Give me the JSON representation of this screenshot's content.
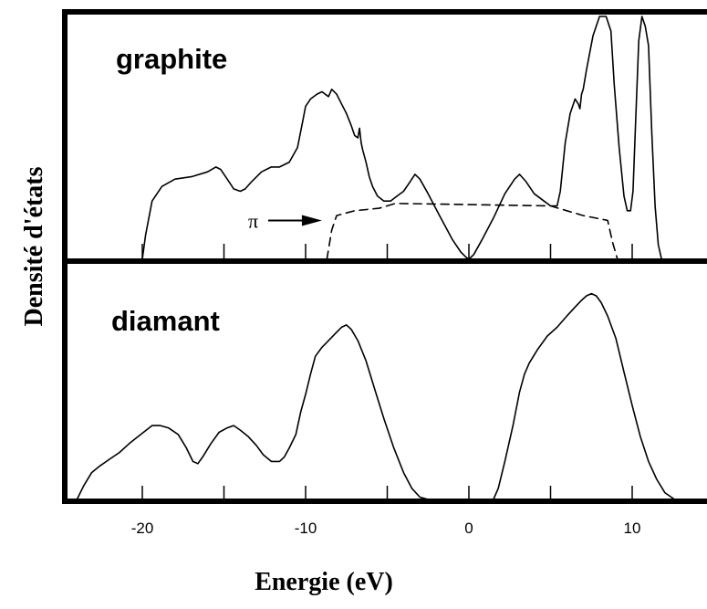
{
  "chart_data": {
    "type": "line",
    "xlabel": "Energie (eV)",
    "ylabel": "Densité d'états",
    "xlim": [
      -25,
      14
    ],
    "x_ticks": [
      -20,
      -10,
      0,
      10
    ],
    "x_tick_labels": [
      "-20",
      "-10",
      "0",
      "10"
    ],
    "minor_ticks": [
      -20,
      -15,
      -10,
      -5,
      0,
      5,
      10
    ],
    "grid": false,
    "panels": [
      {
        "label": "graphite",
        "ylim": [
          0,
          1
        ],
        "series": [
          {
            "style": "solid",
            "x": [
              -20,
              -19.8,
              -19.4,
              -18.8,
              -18,
              -17,
              -16,
              -15.5,
              -15.2,
              -14.8,
              -14.4,
              -14,
              -13.7,
              -13.3,
              -12.7,
              -12.1,
              -11.6,
              -11,
              -10.5,
              -10.2,
              -10,
              -9.7,
              -9.3,
              -9,
              -8.6,
              -8.4,
              -8.1,
              -7.8,
              -7.5,
              -7.2,
              -7,
              -6.8,
              -6.7,
              -6.6,
              -6.5,
              -6.3,
              -6.1,
              -5.9,
              -5.6,
              -5.2,
              -4.8,
              -4.4,
              -4,
              -3.6,
              -3.3,
              -3,
              -2.5,
              -1.8,
              -1,
              -0.5,
              -0.2,
              0,
              0.3,
              0.8,
              1.5,
              2.2,
              2.8,
              3.1,
              3.5,
              4,
              4.6,
              5,
              5.4,
              5.6,
              5.9,
              6.2,
              6.5,
              6.7,
              6.8,
              6.9,
              7,
              7.2,
              7.6,
              8,
              8.4,
              8.7,
              8.9,
              9.2,
              9.5,
              9.7,
              9.9,
              10.05,
              10.2,
              10.4,
              10.6,
              10.8,
              11,
              11.2,
              11.4,
              11.6,
              11.8
            ],
            "y": [
              0,
              0.1,
              0.24,
              0.3,
              0.33,
              0.34,
              0.36,
              0.38,
              0.37,
              0.33,
              0.29,
              0.28,
              0.29,
              0.32,
              0.36,
              0.38,
              0.38,
              0.4,
              0.46,
              0.56,
              0.63,
              0.66,
              0.68,
              0.69,
              0.67,
              0.7,
              0.68,
              0.64,
              0.6,
              0.55,
              0.51,
              0.5,
              0.54,
              0.48,
              0.45,
              0.4,
              0.34,
              0.3,
              0.26,
              0.24,
              0.24,
              0.26,
              0.28,
              0.32,
              0.35,
              0.33,
              0.27,
              0.18,
              0.08,
              0.03,
              0.01,
              0,
              0.02,
              0.08,
              0.17,
              0.27,
              0.33,
              0.35,
              0.32,
              0.27,
              0.24,
              0.22,
              0.22,
              0.28,
              0.48,
              0.6,
              0.66,
              0.64,
              0.62,
              0.68,
              0.7,
              0.78,
              0.92,
              1.0,
              1.0,
              0.94,
              0.72,
              0.46,
              0.26,
              0.2,
              0.2,
              0.28,
              0.55,
              0.9,
              1.0,
              0.96,
              0.88,
              0.52,
              0.22,
              0.06,
              0
            ]
          },
          {
            "style": "dashed",
            "x": [
              -8.7,
              -8.4,
              -8.1,
              -7,
              -5.5,
              -4.5,
              5,
              6,
              7,
              8.5,
              8.8,
              9.1
            ],
            "y": [
              0,
              0.12,
              0.18,
              0.2,
              0.21,
              0.23,
              0.22,
              0.2,
              0.18,
              0.16,
              0.07,
              0
            ]
          }
        ],
        "annotations": [
          {
            "text": "π",
            "arrow_to_x": -9,
            "arrow_y": 0.16
          }
        ]
      },
      {
        "label": "diamant",
        "ylim": [
          0,
          1
        ],
        "series": [
          {
            "style": "solid",
            "x": [
              -24,
              -23.6,
              -23.1,
              -22.6,
              -22,
              -21.4,
              -20.8,
              -20.1,
              -19.4,
              -18.9,
              -18.4,
              -17.8,
              -17.3,
              -16.9,
              -16.6,
              -16.3,
              -15.8,
              -15.3,
              -14.8,
              -14.4,
              -14,
              -13.5,
              -13,
              -12.6,
              -12.1,
              -11.6,
              -11.3,
              -11,
              -10.6,
              -10.3,
              -10,
              -9.7,
              -9.4,
              -9,
              -8.6,
              -8.2,
              -7.8,
              -7.5,
              -7.2,
              -6.8,
              -6.3,
              -5.8,
              -5.2,
              -4.6,
              -4,
              -3.5,
              -3,
              -2.5,
              1.5,
              1.8,
              2.2,
              2.7,
              3.1,
              3.4,
              3.7,
              4.2,
              4.8,
              5.4,
              6,
              6.5,
              6.9,
              7.2,
              7.5,
              7.8,
              8.1,
              8.5,
              9,
              9.5,
              10,
              10.5,
              11,
              11.5,
              12,
              12.6
            ],
            "y": [
              0,
              0.06,
              0.12,
              0.15,
              0.18,
              0.21,
              0.25,
              0.29,
              0.33,
              0.33,
              0.32,
              0.29,
              0.23,
              0.17,
              0.16,
              0.19,
              0.25,
              0.3,
              0.32,
              0.33,
              0.31,
              0.28,
              0.24,
              0.2,
              0.17,
              0.17,
              0.19,
              0.23,
              0.29,
              0.39,
              0.47,
              0.56,
              0.64,
              0.68,
              0.71,
              0.74,
              0.77,
              0.78,
              0.76,
              0.71,
              0.62,
              0.5,
              0.36,
              0.23,
              0.12,
              0.05,
              0.01,
              0,
              0,
              0.05,
              0.17,
              0.33,
              0.48,
              0.56,
              0.61,
              0.67,
              0.73,
              0.77,
              0.82,
              0.86,
              0.89,
              0.91,
              0.92,
              0.91,
              0.88,
              0.82,
              0.72,
              0.57,
              0.42,
              0.28,
              0.17,
              0.09,
              0.03,
              0
            ]
          }
        ]
      }
    ]
  }
}
